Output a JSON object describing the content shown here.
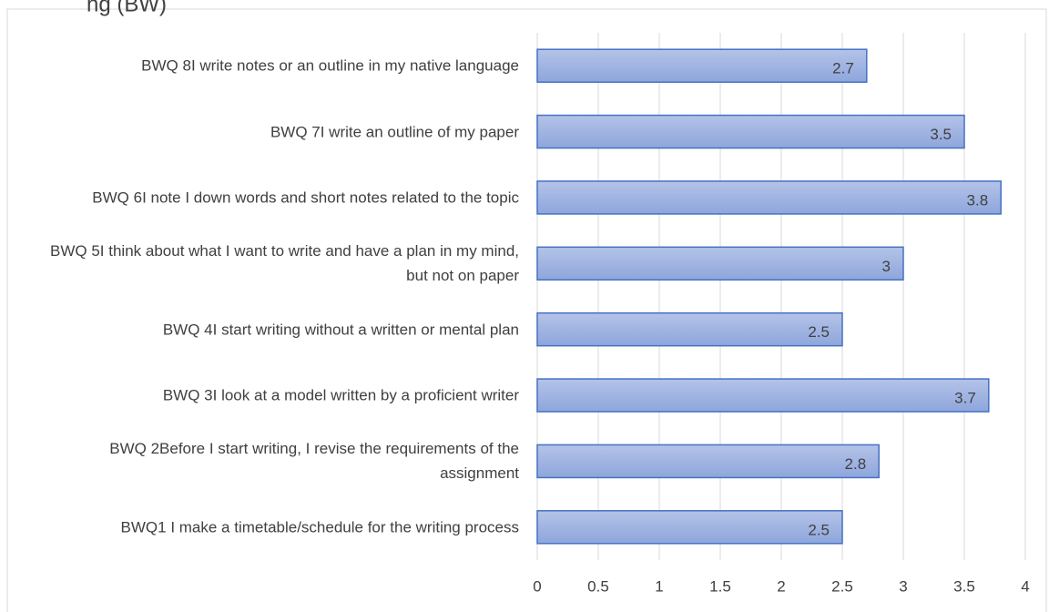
{
  "chart_data": {
    "type": "bar",
    "orientation": "horizontal",
    "title": "ng (BW)",
    "categories": [
      "BWQ 8I write notes or an outline in my native language",
      "BWQ 7I write an outline of my paper",
      "BWQ 6I note I down words and short notes related to the topic",
      "BWQ 5I think about what I want to write and have a plan in my mind, but not on paper",
      "BWQ 4I start writing without a written or mental plan",
      "BWQ 3I look at a model written by a proficient writer",
      "BWQ 2Before I start writing, I revise the requirements of the assignment",
      "BWQ1 I make a timetable/schedule for the writing process"
    ],
    "values": [
      2.7,
      3.5,
      3.8,
      3,
      2.5,
      3.7,
      2.8,
      2.5
    ],
    "color": "#8faadc",
    "edge_color": "#4472c4",
    "xlim": [
      0,
      4
    ],
    "xticks": [
      0,
      0.5,
      1,
      1.5,
      2,
      2.5,
      3,
      3.5,
      4
    ],
    "grid": true
  }
}
